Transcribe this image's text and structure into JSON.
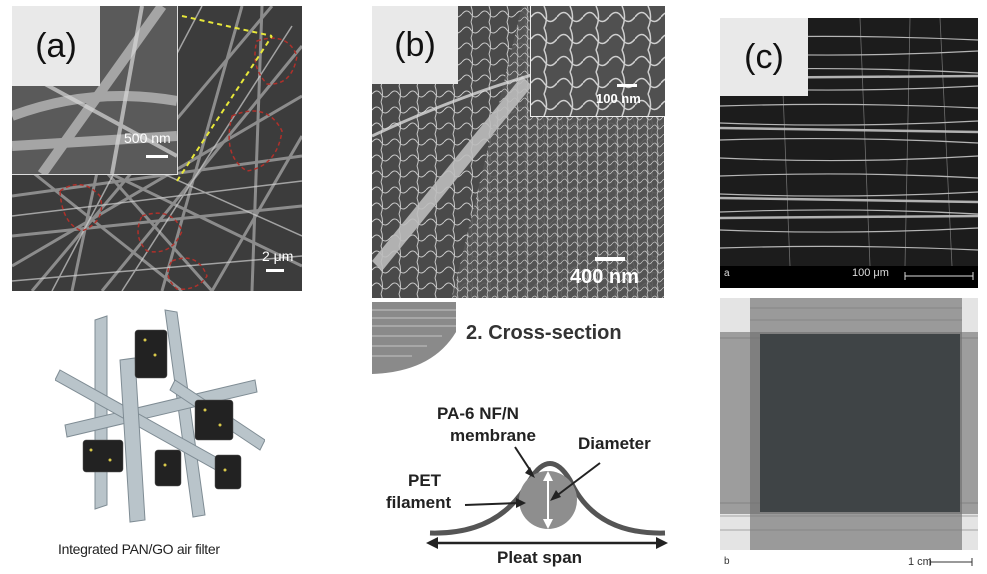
{
  "panel_a": {
    "label": "(a)",
    "scale_inset": "500 nm",
    "scale_main": "2 μm",
    "caption": "Integrated PAN/GO air filter"
  },
  "panel_b": {
    "label": "(b)",
    "scale_inset": "100 nm",
    "scale_main": "400 nm",
    "section_title": "2. Cross-section",
    "diagram": {
      "membrane_label_1": "PA-6 NF/N",
      "membrane_label_2": "membrane",
      "diameter_label": "Diameter",
      "pet_label_1": "PET",
      "pet_label_2": "filament",
      "span_label": "Pleat span"
    }
  },
  "panel_c": {
    "label": "(c)",
    "top_sub_label": "a",
    "top_scale": "100 μm",
    "bottom_sub_label": "b",
    "bottom_scale": "1 cm"
  },
  "colors": {
    "sem_dark": "#3b3b3b",
    "outline_red": "#b0302a",
    "dash_yellow": "#e8e83a",
    "fiber_gray": "#a9b4bb",
    "film_dark": "#3f4446"
  }
}
